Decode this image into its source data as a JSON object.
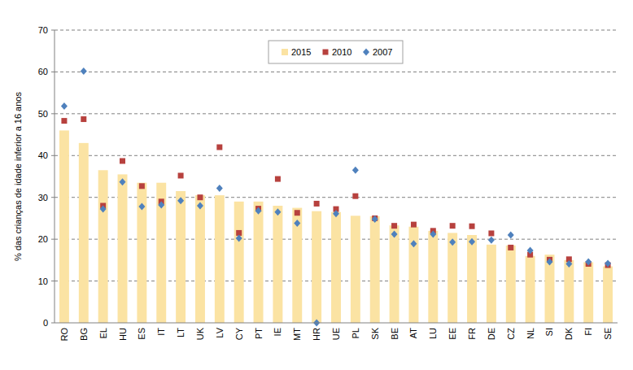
{
  "chart_data": {
    "type": "bar",
    "y_label": "% das crianças de idade inferior a 16 anos",
    "categories": [
      "RO",
      "BG",
      "EL",
      "HU",
      "ES",
      "IT",
      "LT",
      "UK",
      "LV",
      "CY",
      "PT",
      "IE",
      "MT",
      "HR",
      "UE",
      "PL",
      "SK",
      "BE",
      "AT",
      "LU",
      "EE",
      "FR",
      "DE",
      "CZ",
      "NL",
      "SI",
      "DK",
      "FI",
      "SE"
    ],
    "series": [
      {
        "name": "2015",
        "type": "bar",
        "color": "#fbe3a3",
        "values": [
          46,
          43,
          36.5,
          35.5,
          33.5,
          33.5,
          31.5,
          30.5,
          30.5,
          29,
          29,
          28,
          27.5,
          26.7,
          26.5,
          25.6,
          25.5,
          23.3,
          23,
          22,
          21.5,
          21,
          18.7,
          18.5,
          16,
          16.3,
          15,
          14.5,
          13.5
        ]
      },
      {
        "name": "2010",
        "type": "scatter",
        "marker": "square",
        "color": "#b7413e",
        "values": [
          48.3,
          48.7,
          28,
          38.7,
          32.7,
          29,
          35.2,
          30,
          42,
          21.5,
          27.3,
          34.4,
          26.3,
          28.5,
          27.2,
          30.3,
          25,
          23.2,
          23.5,
          22,
          23.2,
          23.1,
          21.4,
          18,
          16.3,
          15.1,
          15.2,
          14.1,
          13.8
        ]
      },
      {
        "name": "2007",
        "type": "scatter",
        "marker": "diamond",
        "color": "#4f81bd",
        "values": [
          51.8,
          60.2,
          27.2,
          33.7,
          27.8,
          28.2,
          29.2,
          28,
          32.2,
          20.2,
          26.8,
          26.5,
          23.8,
          0,
          26.1,
          36.5,
          24.8,
          21.2,
          18.9,
          21.2,
          19.3,
          19.4,
          19.8,
          21,
          17.3,
          14.6,
          14.1,
          14.6,
          14.2
        ]
      }
    ],
    "ylim": [
      0,
      70
    ],
    "yticks": [
      0,
      10,
      20,
      30,
      40,
      50,
      60,
      70
    ],
    "grid": true,
    "legend": "top"
  }
}
